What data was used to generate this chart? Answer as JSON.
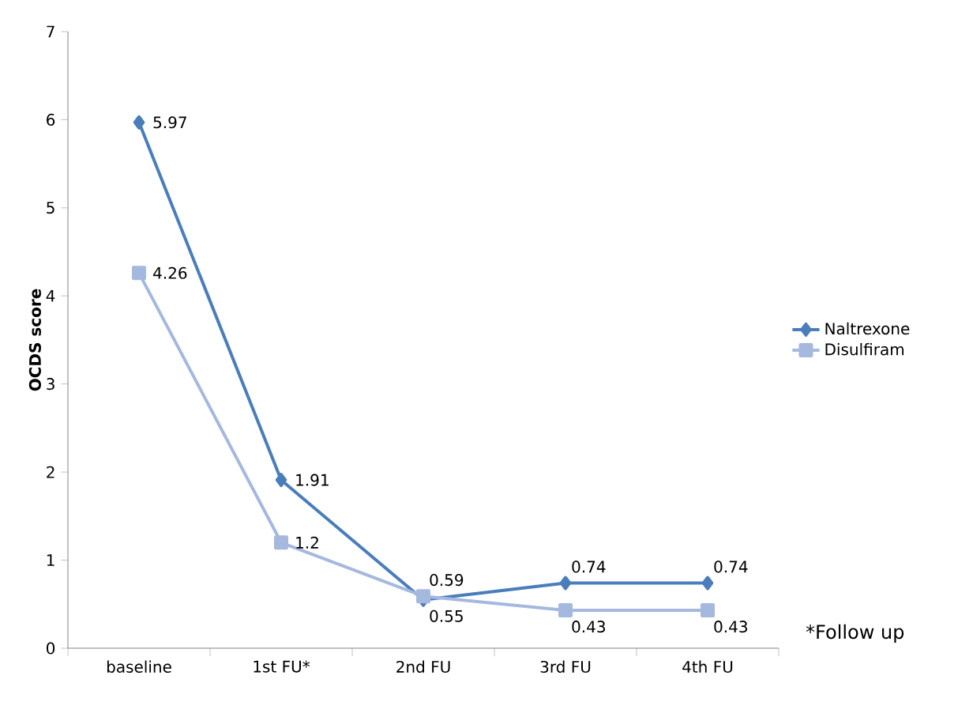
{
  "chart_data": {
    "type": "line",
    "ylabel": "OCDS score",
    "categories": [
      "baseline",
      "1st FU*",
      "2nd FU",
      "3rd FU",
      "4th FU"
    ],
    "series": [
      {
        "name": "Naltrexone",
        "color": "#4a7ebb",
        "marker": "diamond",
        "values": [
          5.97,
          1.91,
          0.55,
          0.74,
          0.74
        ]
      },
      {
        "name": "Disulfiram",
        "color": "#a5b8de",
        "marker": "square",
        "values": [
          4.26,
          1.2,
          0.59,
          0.43,
          0.43
        ]
      }
    ],
    "ylim": [
      0,
      7
    ],
    "yticks": [
      0,
      1,
      2,
      3,
      4,
      5,
      6,
      7
    ],
    "grid": false,
    "legend": "right",
    "data_labels": true,
    "annotations": [
      "*Follow up"
    ]
  }
}
